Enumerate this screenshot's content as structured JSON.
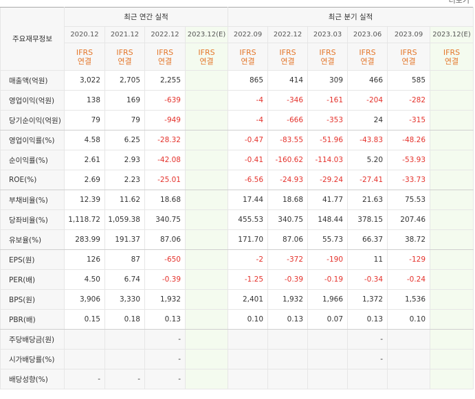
{
  "more_link": "더보기",
  "table": {
    "label_header": "주요재무정보",
    "groups": [
      {
        "title": "최근 연간 실적",
        "span": 4
      },
      {
        "title": "최근 분기 실적",
        "span": 6
      }
    ],
    "columns": [
      {
        "period": "2020.12",
        "standard": "IFRS",
        "scope": "연결"
      },
      {
        "period": "2021.12",
        "standard": "IFRS",
        "scope": "연결"
      },
      {
        "period": "2022.12",
        "standard": "IFRS",
        "scope": "연결"
      },
      {
        "period": "2023.12(E)",
        "standard": "IFRS",
        "scope": "연결"
      },
      {
        "period": "2022.09",
        "standard": "IFRS",
        "scope": "연결"
      },
      {
        "period": "2022.12",
        "standard": "IFRS",
        "scope": "연결"
      },
      {
        "period": "2023.03",
        "standard": "IFRS",
        "scope": "연결"
      },
      {
        "period": "2023.06",
        "standard": "IFRS",
        "scope": "연결"
      },
      {
        "period": "2023.09",
        "standard": "IFRS",
        "scope": "연결"
      },
      {
        "period": "2023.12(E)",
        "standard": "IFRS",
        "scope": "연결"
      }
    ],
    "rows": [
      {
        "label": "매출액(억원)",
        "cells": [
          "3,022",
          "2,705",
          "2,255",
          null,
          "865",
          "414",
          "309",
          "466",
          "585",
          null
        ]
      },
      {
        "label": "영업이익(억원)",
        "cells": [
          "138",
          "169",
          "-639",
          null,
          "-4",
          "-346",
          "-161",
          "-204",
          "-282",
          null
        ]
      },
      {
        "label": "당기순이익(억원)",
        "cells": [
          "79",
          "79",
          "-949",
          null,
          "-4",
          "-666",
          "-353",
          "24",
          "-315",
          null
        ]
      },
      {
        "label": "영업이익률(%)",
        "cells": [
          "4.58",
          "6.25",
          "-28.32",
          null,
          "-0.47",
          "-83.55",
          "-51.96",
          "-43.83",
          "-48.26",
          null
        ]
      },
      {
        "label": "순이익률(%)",
        "cells": [
          "2.61",
          "2.93",
          "-42.08",
          null,
          "-0.41",
          "-160.62",
          "-114.03",
          "5.20",
          "-53.93",
          null
        ]
      },
      {
        "label": "ROE(%)",
        "cells": [
          "2.69",
          "2.23",
          "-25.01",
          null,
          "-6.56",
          "-24.93",
          "-29.24",
          "-27.41",
          "-33.73",
          null
        ]
      },
      {
        "label": "부채비율(%)",
        "cells": [
          "12.39",
          "11.62",
          "18.68",
          null,
          "17.44",
          "18.68",
          "41.77",
          "21.63",
          "75.53",
          null
        ]
      },
      {
        "label": "당좌비율(%)",
        "cells": [
          "1,118.72",
          "1,059.38",
          "340.75",
          null,
          "455.53",
          "340.75",
          "148.44",
          "378.15",
          "207.46",
          null
        ]
      },
      {
        "label": "유보율(%)",
        "cells": [
          "283.99",
          "191.37",
          "87.06",
          null,
          "171.70",
          "87.06",
          "55.73",
          "66.37",
          "38.72",
          null
        ]
      },
      {
        "label": "EPS(원)",
        "cells": [
          "126",
          "87",
          "-650",
          null,
          "-2",
          "-372",
          "-190",
          "11",
          "-129",
          null
        ]
      },
      {
        "label": "PER(배)",
        "cells": [
          "4.50",
          "6.74",
          "-0.39",
          null,
          "-1.25",
          "-0.39",
          "-0.19",
          "-0.34",
          "-0.24",
          null
        ]
      },
      {
        "label": "BPS(원)",
        "cells": [
          "3,906",
          "3,330",
          "1,932",
          null,
          "2,401",
          "1,932",
          "1,966",
          "1,372",
          "1,536",
          null
        ]
      },
      {
        "label": "PBR(배)",
        "cells": [
          "0.15",
          "0.18",
          "0.13",
          null,
          "0.10",
          "0.13",
          "0.07",
          "0.13",
          "0.10",
          null
        ]
      },
      {
        "label": "주당배당금(원)",
        "cells": [
          null,
          null,
          "-",
          null,
          null,
          null,
          null,
          "-",
          null,
          null
        ]
      },
      {
        "label": "시가배당률(%)",
        "cells": [
          null,
          null,
          "-",
          null,
          null,
          null,
          null,
          "-",
          null,
          null
        ]
      },
      {
        "label": "배당성향(%)",
        "cells": [
          "-",
          "-",
          "-",
          null,
          null,
          null,
          null,
          null,
          null,
          null
        ]
      }
    ]
  }
}
